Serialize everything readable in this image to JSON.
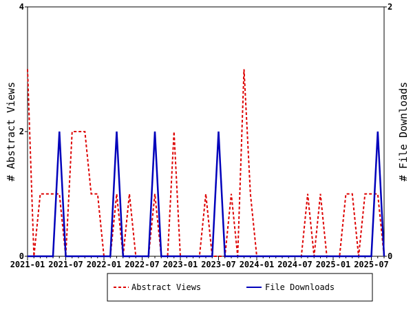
{
  "chart_data": {
    "type": "line",
    "title": "",
    "xlabel": "",
    "ylabel": "# Abstract Views",
    "y2label": "# File Downloads",
    "ylim": [
      0,
      4
    ],
    "y2lim": [
      0,
      2
    ],
    "yticks": [
      "0",
      "2",
      "4"
    ],
    "y2ticks": [
      "0",
      "2"
    ],
    "xtick_labels": [
      "2021-01",
      "2021-07",
      "2022-01",
      "2022-07",
      "2023-01",
      "2023-07",
      "2024-01",
      "2024-07",
      "2025-01",
      "2025-07"
    ],
    "start_month": "2021-01",
    "months": 57,
    "series": [
      {
        "name": "Abstract Views",
        "axis": "left",
        "color": "#dd0000",
        "style": "dashed",
        "values": [
          3,
          0,
          1,
          1,
          1,
          1,
          0,
          2,
          2,
          2,
          1,
          1,
          0,
          0,
          1,
          0,
          1,
          0,
          0,
          0,
          1,
          0,
          0,
          2,
          0,
          0,
          0,
          0,
          1,
          0,
          0,
          0,
          1,
          0,
          3,
          1,
          0,
          0,
          0,
          0,
          0,
          0,
          0,
          0,
          1,
          0,
          1,
          0,
          0,
          0,
          1,
          1,
          0,
          1,
          1,
          1,
          0
        ]
      },
      {
        "name": "File Downloads",
        "axis": "right",
        "color": "#0000bb",
        "style": "solid",
        "values": [
          0,
          0,
          0,
          0,
          0,
          1,
          0,
          0,
          0,
          0,
          0,
          0,
          0,
          0,
          1,
          0,
          0,
          0,
          0,
          0,
          1,
          0,
          0,
          0,
          0,
          0,
          0,
          0,
          0,
          0,
          1,
          0,
          0,
          0,
          0,
          0,
          0,
          0,
          0,
          0,
          0,
          0,
          0,
          0,
          0,
          0,
          0,
          0,
          0,
          0,
          0,
          0,
          0,
          0,
          0,
          1,
          0
        ]
      }
    ],
    "legend": {
      "placement": "bottom",
      "entries": [
        "Abstract Views",
        "File Downloads"
      ]
    },
    "grid": false
  }
}
